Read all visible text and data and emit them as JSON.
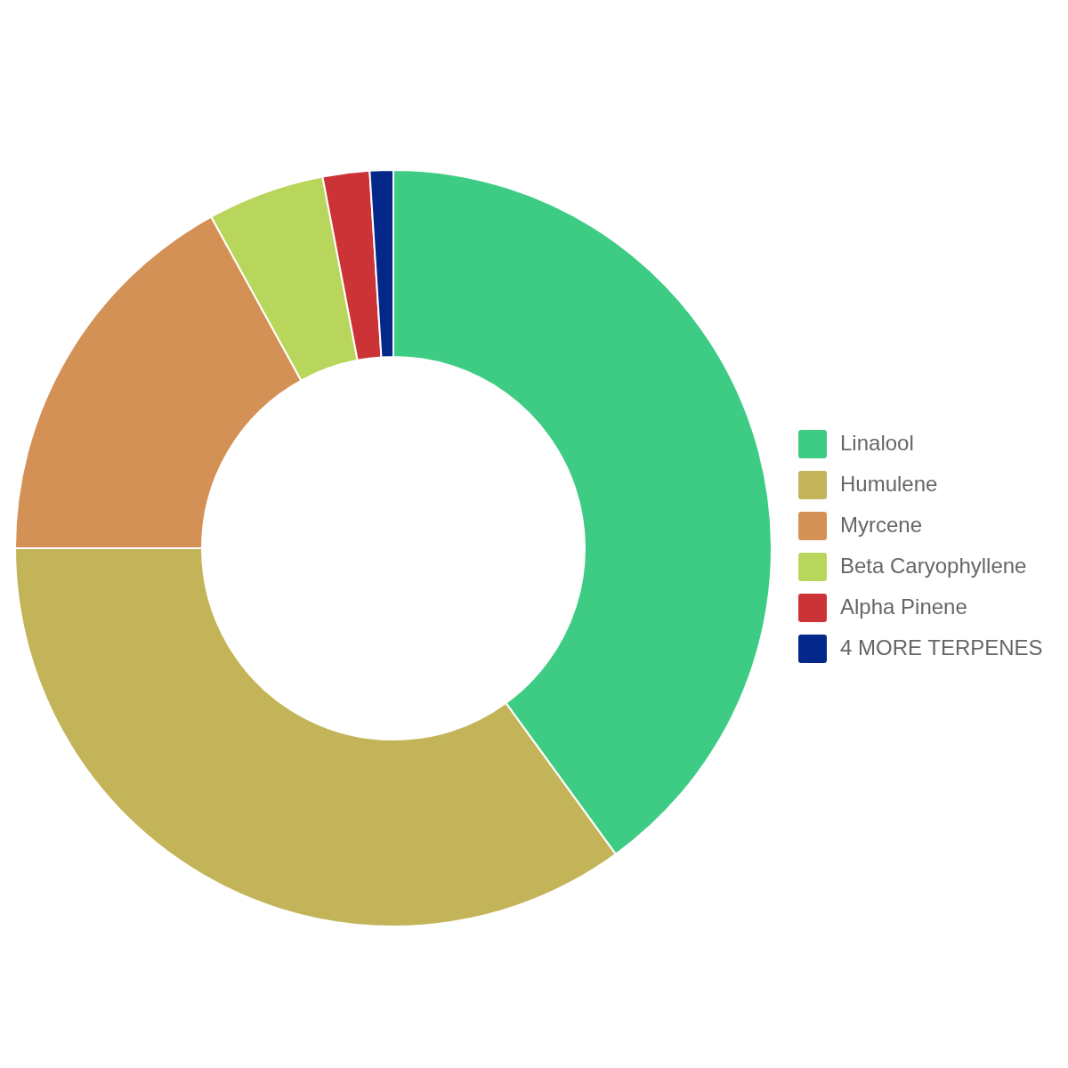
{
  "chart_data": {
    "type": "donut",
    "categories": [
      "Linalool",
      "Humulene",
      "Myrcene",
      "Beta Caryophyllene",
      "Alpha Pinene",
      "4 MORE TERPENES"
    ],
    "values": [
      40,
      35,
      17,
      5,
      2,
      1
    ],
    "colors": [
      "#3ecc84",
      "#c4b459",
      "#d49155",
      "#b8d65b",
      "#cc3336",
      "#03288a"
    ],
    "legend": "right"
  }
}
